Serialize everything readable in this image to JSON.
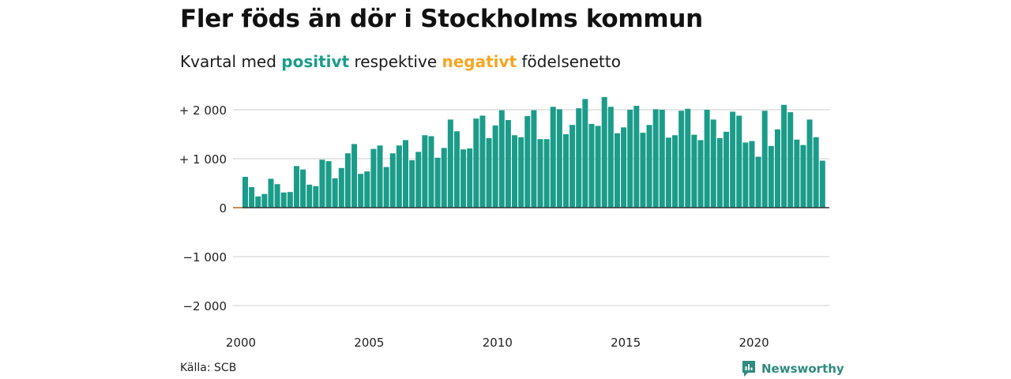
{
  "title": "Fler föds än dör i Stockholms kommun",
  "subtitle": {
    "prefix": "Kvartal med",
    "positive": "positivt",
    "middle": "respektive",
    "negative": "negativt",
    "suffix": "födelsenetto"
  },
  "source": "Källa: SCB",
  "brand": {
    "name": "Newsworthy",
    "icon": "newsworthy-logo-icon"
  },
  "colors": {
    "positive": "#1b9c8a",
    "negative": "#f5a623",
    "grid": "#dddddd",
    "zero": "#333333"
  },
  "chart_data": {
    "type": "bar",
    "x_start": "2000 Q1",
    "y_ticks": [
      {
        "value": 2000,
        "label": "+ 2 000"
      },
      {
        "value": 1000,
        "label": "+ 1 000"
      },
      {
        "value": 0,
        "label": "0"
      },
      {
        "value": -1000,
        "label": "−1 000"
      },
      {
        "value": -2000,
        "label": "−2 000"
      }
    ],
    "x_ticks": [
      {
        "value": 2000,
        "label": "2000"
      },
      {
        "value": 2005,
        "label": "2005"
      },
      {
        "value": 2010,
        "label": "2010"
      },
      {
        "value": 2015,
        "label": "2015"
      },
      {
        "value": 2020,
        "label": "2020"
      }
    ],
    "ylim": [
      -2000,
      2000
    ],
    "xlim": [
      2000,
      2023
    ],
    "values": [
      630,
      420,
      230,
      280,
      590,
      480,
      310,
      320,
      850,
      780,
      470,
      440,
      980,
      950,
      600,
      810,
      1110,
      1300,
      690,
      740,
      1200,
      1270,
      830,
      1110,
      1270,
      1380,
      970,
      1140,
      1480,
      1460,
      1020,
      1220,
      1800,
      1560,
      1190,
      1210,
      1820,
      1880,
      1420,
      1680,
      1990,
      1790,
      1480,
      1440,
      1870,
      1990,
      1400,
      1400,
      2060,
      2010,
      1500,
      1690,
      2030,
      2220,
      1710,
      1670,
      2260,
      2060,
      1520,
      1640,
      2000,
      2080,
      1530,
      1690,
      2010,
      2000,
      1430,
      1480,
      1980,
      2020,
      1490,
      1380,
      2000,
      1800,
      1420,
      1550,
      1960,
      1880,
      1330,
      1360,
      1040,
      1980,
      1260,
      1600,
      2100,
      1950,
      1390,
      1280,
      1800,
      1440,
      960
    ]
  }
}
